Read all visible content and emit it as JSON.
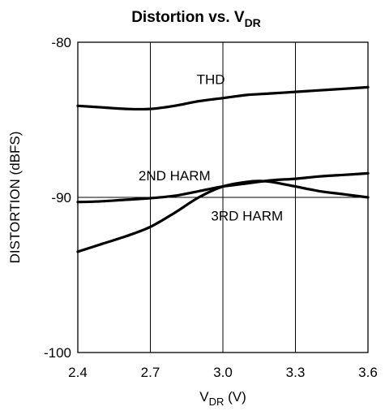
{
  "chart_data": {
    "type": "line",
    "title_main": "Distortion vs. V",
    "title_sub": "DR",
    "xlabel_main": "V",
    "xlabel_sub": "DR",
    "xlabel_unit": " (V)",
    "ylabel": "DISTORTION (dBFS)",
    "xlim": [
      2.4,
      3.6
    ],
    "ylim": [
      -100,
      -80
    ],
    "x_ticks": [
      "2.4",
      "2.7",
      "3.0",
      "3.3",
      "3.6"
    ],
    "x_tick_values": [
      2.4,
      2.7,
      3.0,
      3.3,
      3.6
    ],
    "y_ticks": [
      "-80",
      "-90",
      "-100"
    ],
    "y_tick_values": [
      -80,
      -90,
      -100
    ],
    "grid": "vertical lines at x ticks, horizontal line at -90",
    "legend": "none",
    "series": [
      {
        "name": "THD",
        "x": [
          2.4,
          2.5,
          2.6,
          2.7,
          2.8,
          2.9,
          3.0,
          3.1,
          3.2,
          3.3,
          3.4,
          3.5,
          3.6
        ],
        "values": [
          -84.1,
          -84.2,
          -84.3,
          -84.3,
          -84.1,
          -83.8,
          -83.6,
          -83.4,
          -83.3,
          -83.2,
          -83.1,
          -83.0,
          -82.9
        ]
      },
      {
        "name": "2ND HARM",
        "x": [
          2.4,
          2.5,
          2.6,
          2.7,
          2.8,
          2.9,
          3.0,
          3.1,
          3.2,
          3.3,
          3.4,
          3.5,
          3.6
        ],
        "values": [
          -90.3,
          -90.25,
          -90.15,
          -90.05,
          -89.9,
          -89.6,
          -89.3,
          -89.1,
          -88.9,
          -88.8,
          -88.65,
          -88.55,
          -88.45
        ]
      },
      {
        "name": "3RD HARM",
        "x": [
          2.4,
          2.5,
          2.6,
          2.7,
          2.8,
          2.9,
          3.0,
          3.1,
          3.15,
          3.2,
          3.3,
          3.4,
          3.5,
          3.6
        ],
        "values": [
          -93.5,
          -93.0,
          -92.5,
          -91.9,
          -91.0,
          -90.0,
          -89.3,
          -89.0,
          -88.95,
          -89.0,
          -89.3,
          -89.6,
          -89.8,
          -90.0
        ]
      }
    ],
    "annotations": [
      {
        "text": "THD",
        "x": 2.95,
        "y": -82.7
      },
      {
        "text": "2ND HARM",
        "x": 2.8,
        "y": -88.9
      },
      {
        "text": "3RD HARM",
        "x": 3.1,
        "y": -91.5
      }
    ]
  }
}
